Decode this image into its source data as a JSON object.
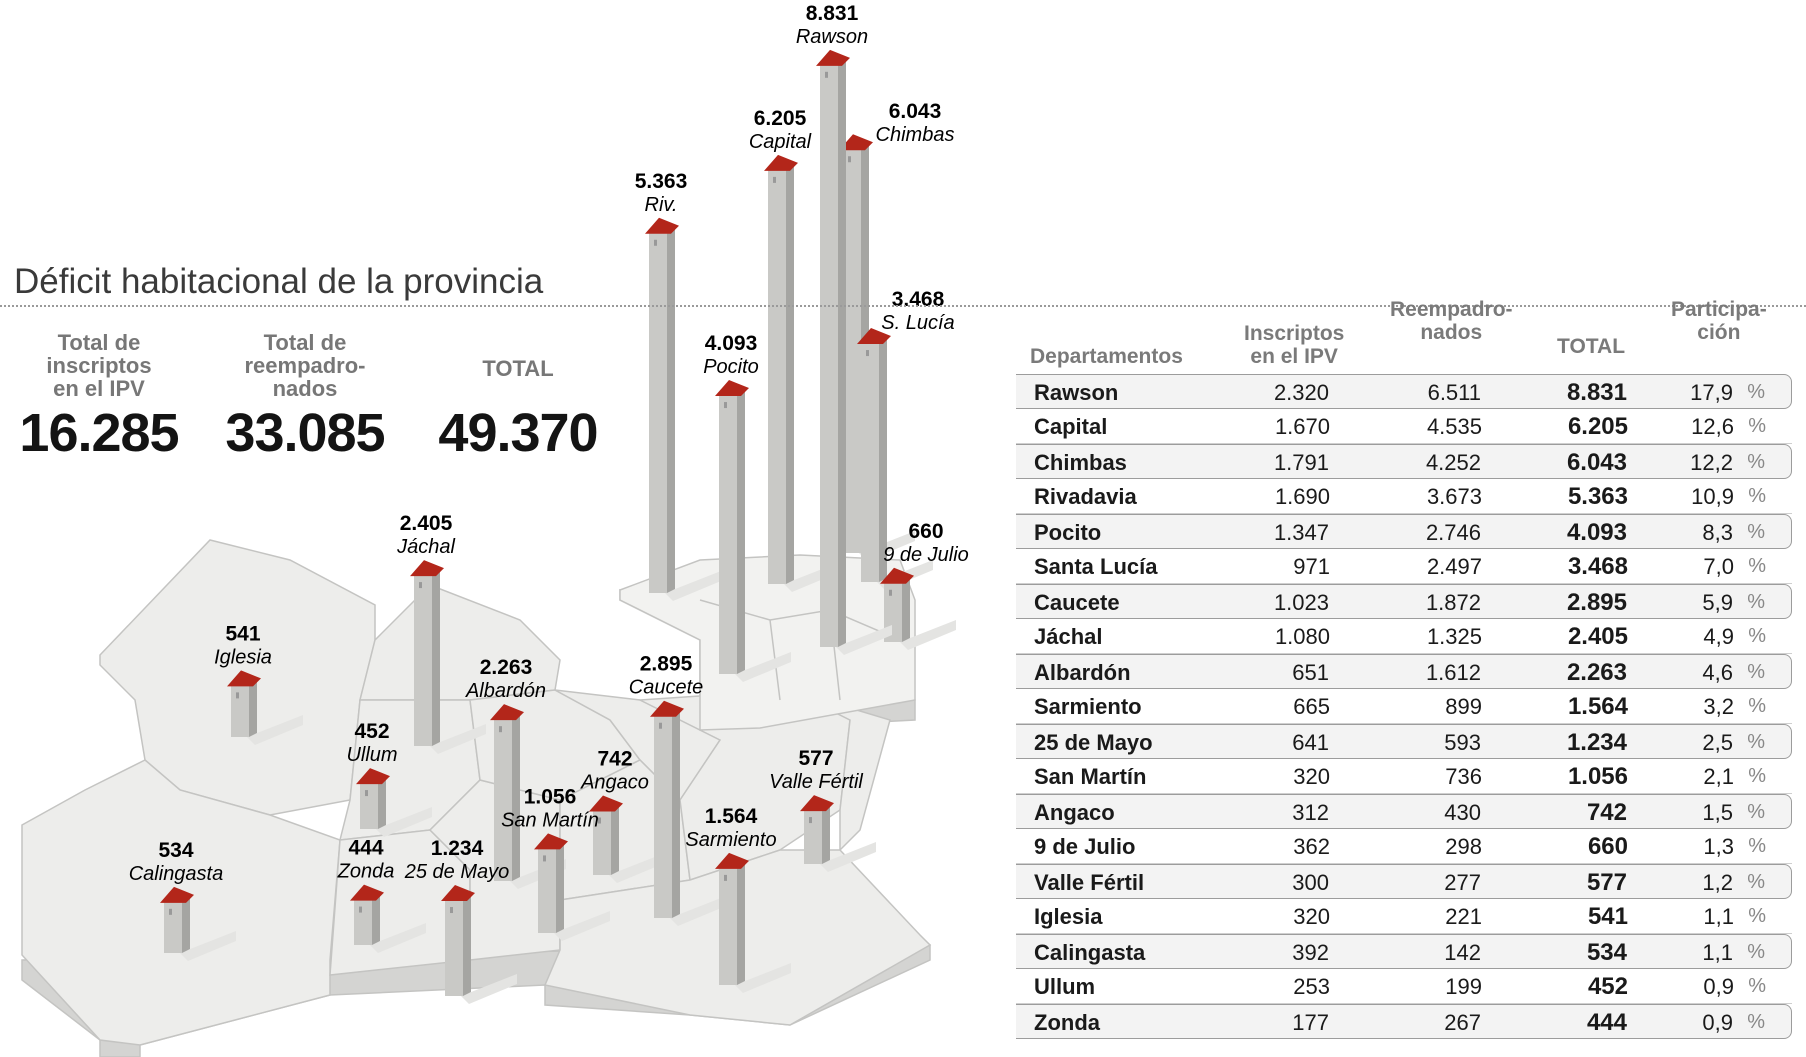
{
  "title": "Déficit habitacional de la provincia",
  "summary": [
    {
      "label": [
        "Total de",
        "inscriptos",
        "en el IPV"
      ],
      "value": "16.285"
    },
    {
      "label": [
        "Total de",
        "reempadro-",
        "nados"
      ],
      "value": "33.085"
    },
    {
      "label": [
        "TOTAL"
      ],
      "value": "49.370"
    }
  ],
  "table": {
    "headers": {
      "dept": "Departamentos",
      "ipv": [
        "Inscriptos",
        "en el IPV"
      ],
      "reemp": [
        "Reempadro-",
        "nados"
      ],
      "total": "TOTAL",
      "part": [
        "Participa-",
        "ción"
      ]
    },
    "percent_sign": "%",
    "rows": [
      {
        "dept": "Rawson",
        "ipv": "2.320",
        "reemp": "6.511",
        "total": "8.831",
        "part": "17,9"
      },
      {
        "dept": "Capital",
        "ipv": "1.670",
        "reemp": "4.535",
        "total": "6.205",
        "part": "12,6"
      },
      {
        "dept": "Chimbas",
        "ipv": "1.791",
        "reemp": "4.252",
        "total": "6.043",
        "part": "12,2"
      },
      {
        "dept": "Rivadavia",
        "ipv": "1.690",
        "reemp": "3.673",
        "total": "5.363",
        "part": "10,9"
      },
      {
        "dept": "Pocito",
        "ipv": "1.347",
        "reemp": "2.746",
        "total": "4.093",
        "part": "8,3"
      },
      {
        "dept": "Santa Lucía",
        "ipv": "971",
        "reemp": "2.497",
        "total": "3.468",
        "part": "7,0"
      },
      {
        "dept": "Caucete",
        "ipv": "1.023",
        "reemp": "1.872",
        "total": "2.895",
        "part": "5,9"
      },
      {
        "dept": "Jáchal",
        "ipv": "1.080",
        "reemp": "1.325",
        "total": "2.405",
        "part": "4,9"
      },
      {
        "dept": "Albardón",
        "ipv": "651",
        "reemp": "1.612",
        "total": "2.263",
        "part": "4,6"
      },
      {
        "dept": "Sarmiento",
        "ipv": "665",
        "reemp": "899",
        "total": "1.564",
        "part": "3,2"
      },
      {
        "dept": "25 de Mayo",
        "ipv": "641",
        "reemp": "593",
        "total": "1.234",
        "part": "2,5"
      },
      {
        "dept": "San Martín",
        "ipv": "320",
        "reemp": "736",
        "total": "1.056",
        "part": "2,1"
      },
      {
        "dept": "Angaco",
        "ipv": "312",
        "reemp": "430",
        "total": "742",
        "part": "1,5"
      },
      {
        "dept": "9 de Julio",
        "ipv": "362",
        "reemp": "298",
        "total": "660",
        "part": "1,3"
      },
      {
        "dept": "Valle Fértil",
        "ipv": "300",
        "reemp": "277",
        "total": "577",
        "part": "1,2"
      },
      {
        "dept": "Iglesia",
        "ipv": "320",
        "reemp": "221",
        "total": "541",
        "part": "1,1"
      },
      {
        "dept": "Calingasta",
        "ipv": "392",
        "reemp": "142",
        "total": "534",
        "part": "1,1"
      },
      {
        "dept": "Ullum",
        "ipv": "253",
        "reemp": "199",
        "total": "452",
        "part": "0,9"
      },
      {
        "dept": "Zonda",
        "ipv": "177",
        "reemp": "267",
        "total": "444",
        "part": "0,9"
      }
    ]
  },
  "chart_data": {
    "type": "bar",
    "title": "Déficit habitacional de la provincia",
    "categories": [
      "Rawson",
      "Capital",
      "Chimbas",
      "Riv.",
      "Pocito",
      "S. Lucía",
      "9 de Julio",
      "Jáchal",
      "Albardón",
      "Caucete",
      "Iglesia",
      "Ullum",
      "Angaco",
      "San Martín",
      "25 de Mayo",
      "Zonda",
      "Sarmiento",
      "Valle Fértil",
      "Calingasta"
    ],
    "values": [
      8831,
      6205,
      6043,
      5363,
      4093,
      3468,
      660,
      2405,
      2263,
      2895,
      541,
      452,
      742,
      1056,
      1234,
      444,
      1564,
      577,
      534
    ],
    "value_labels": [
      "8.831",
      "6.205",
      "6.043",
      "5.363",
      "4.093",
      "3.468",
      "660",
      "2.405",
      "2.263",
      "2.895",
      "541",
      "452",
      "742",
      "1.056",
      "1.234",
      "444",
      "1.564",
      "577",
      "534"
    ],
    "colors": {
      "pillar": "#c9c9c6",
      "pillar_side": "#a5a5a2",
      "roof": "#b3261a",
      "map": "#ececea",
      "map_edge": "#c2c2c0"
    }
  }
}
